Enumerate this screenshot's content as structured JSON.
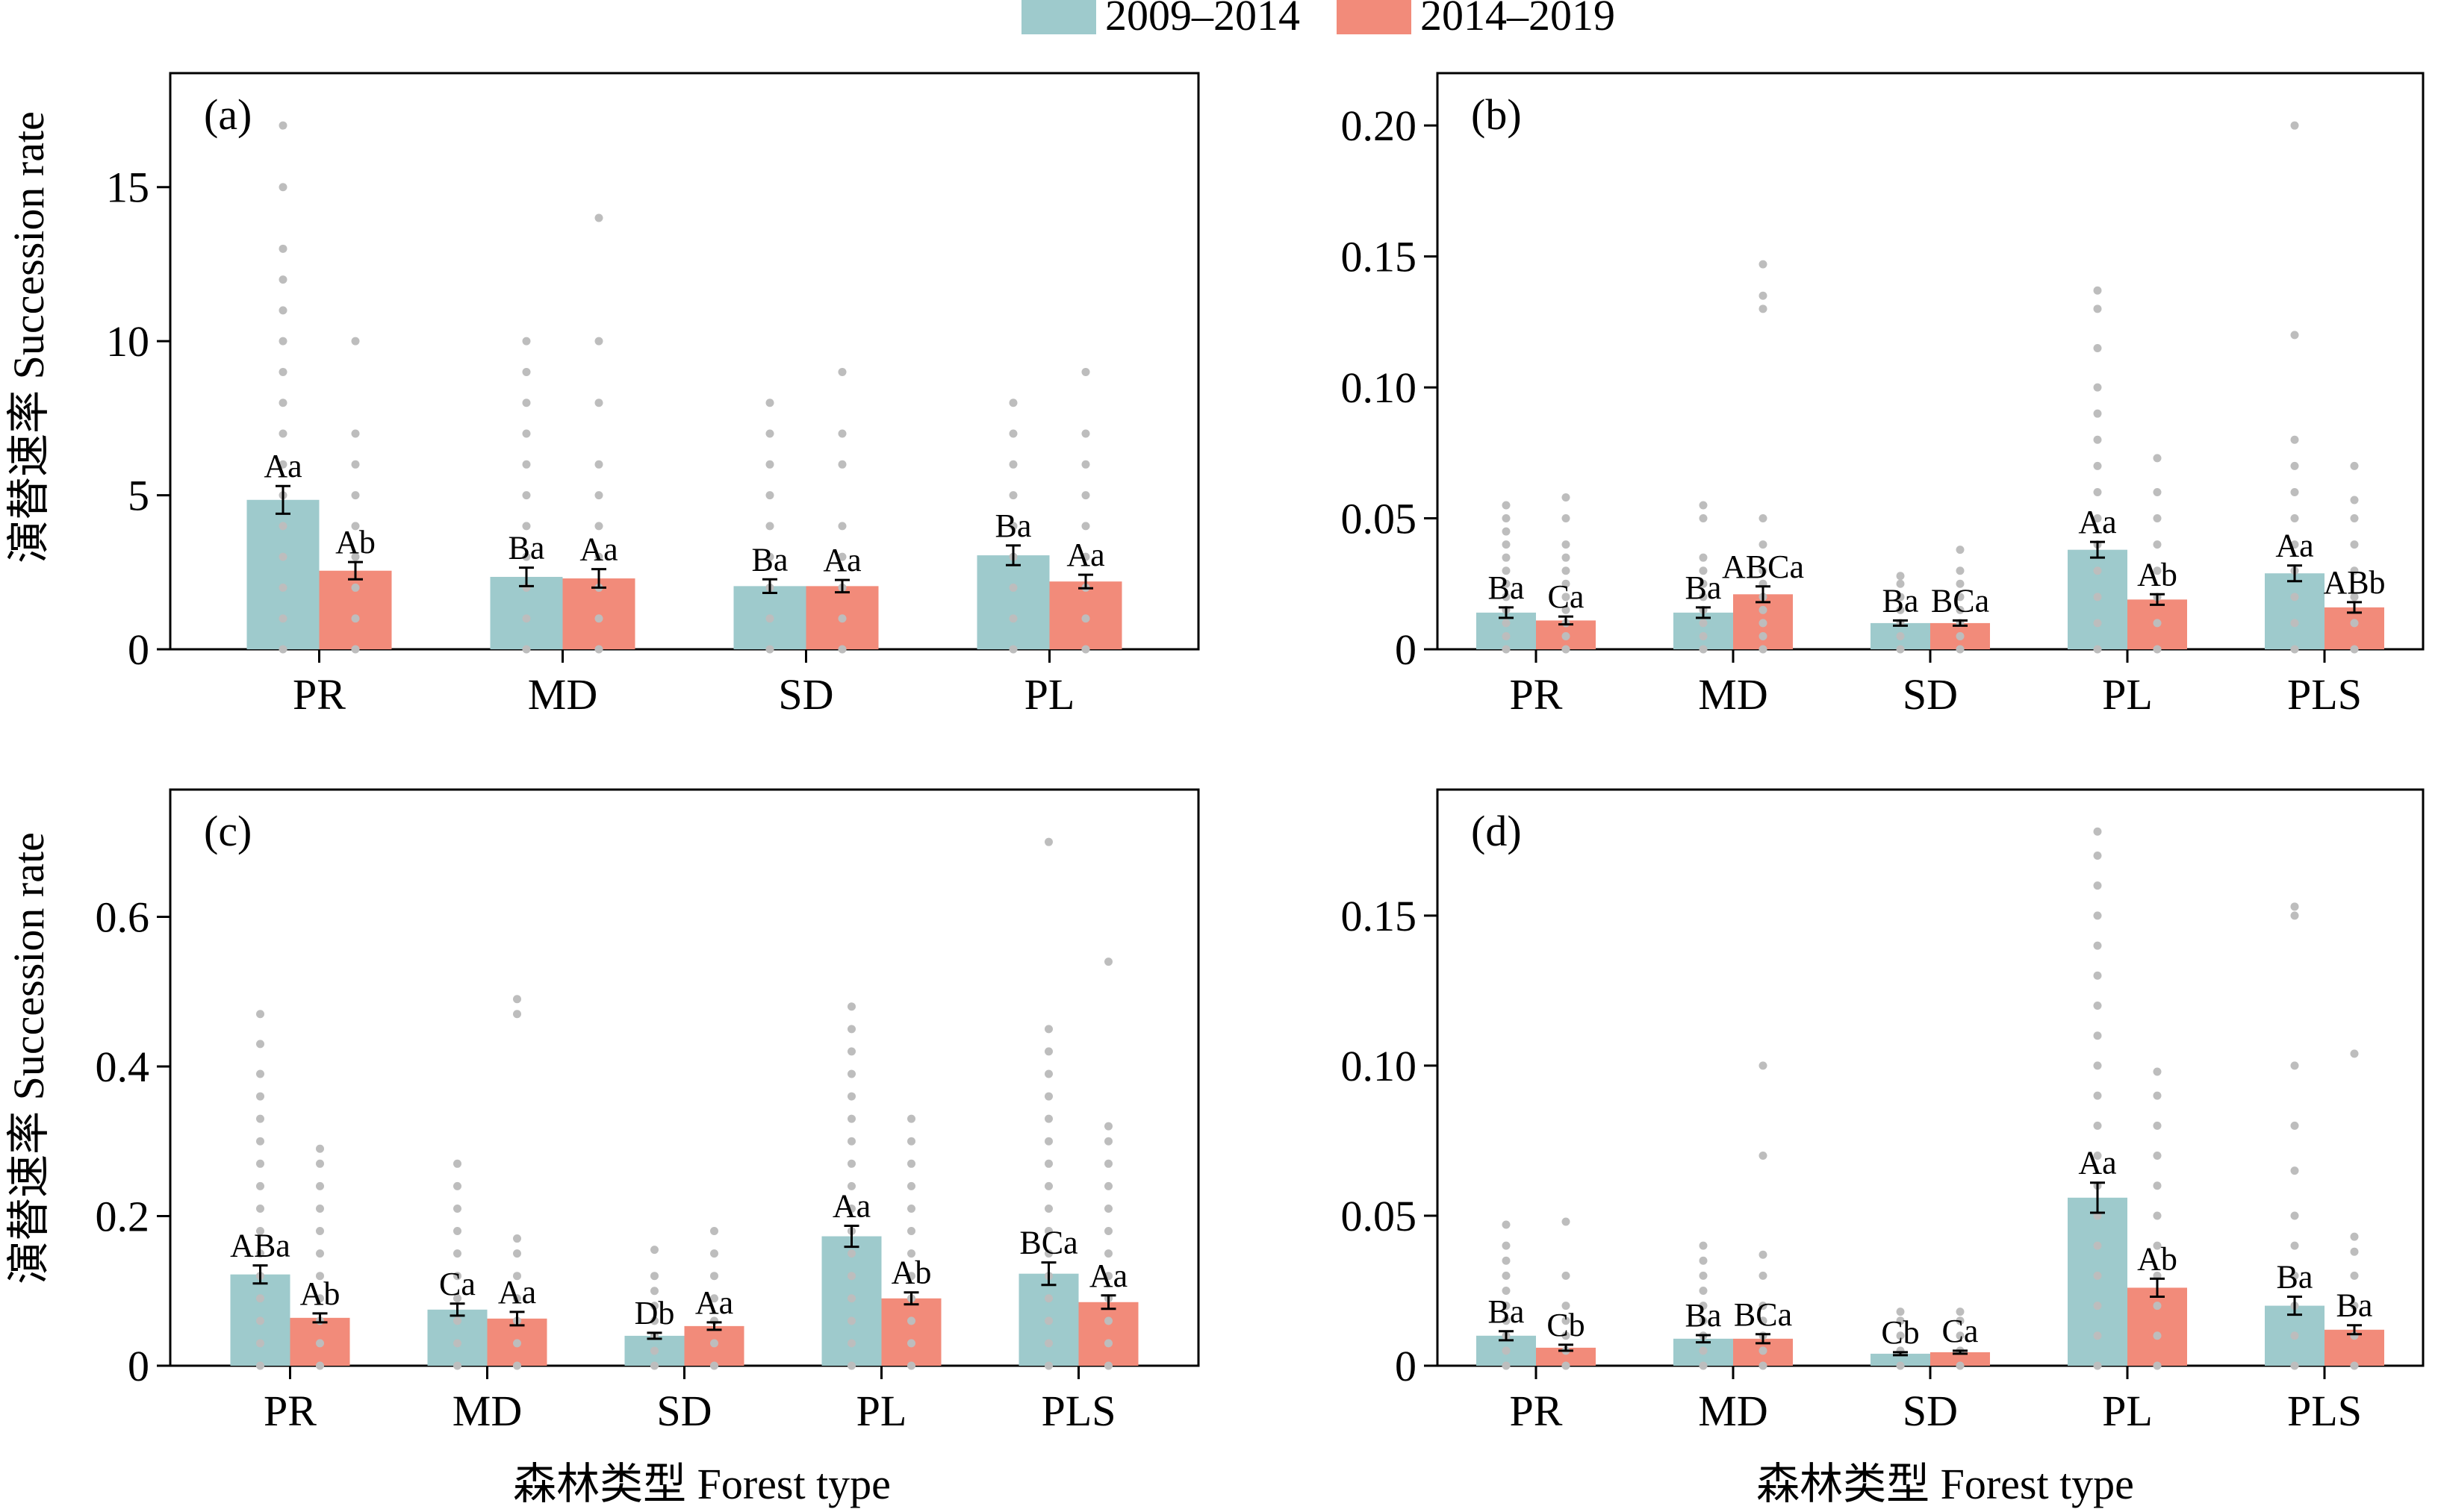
{
  "legend": {
    "position": "top-center",
    "items": [
      {
        "label": "2009–2014",
        "color": "#9ecacc"
      },
      {
        "label": "2014–2019",
        "color": "#f28b7a"
      }
    ]
  },
  "colors": {
    "series1": "#9ecacc",
    "series2": "#f28b7a",
    "points": "#bdbdbd",
    "axis": "#000000"
  },
  "axes": {
    "ylabel_top": "演替速率 Succession rate",
    "ylabel_bottom": "演替速率 Succession rate",
    "xlabel_left": "森林类型 Forest type",
    "xlabel_right": "森林类型 Forest type"
  },
  "chart_data": [
    {
      "panel": "(a)",
      "type": "bar",
      "categories": [
        "PR",
        "MD",
        "SD",
        "PL"
      ],
      "ylim": [
        0,
        18.7
      ],
      "yticks": [
        0,
        5,
        10,
        15
      ],
      "ytick_labels": [
        "0",
        "5",
        "10",
        "15"
      ],
      "series": [
        {
          "values": [
            4.85,
            2.35,
            2.05,
            3.05
          ],
          "errors": [
            0.45,
            0.3,
            0.22,
            0.32
          ],
          "labels": [
            "Aa",
            "Ba",
            "Ba",
            "Ba"
          ],
          "points": [
            [
              0,
              1,
              2,
              3,
              4,
              5,
              6,
              7,
              8,
              9,
              10,
              11,
              12,
              13,
              15,
              17
            ],
            [
              0,
              1,
              2,
              3,
              4,
              5,
              6,
              7,
              8,
              9,
              10
            ],
            [
              0,
              1,
              2,
              3,
              4,
              5,
              6,
              7,
              8
            ],
            [
              0,
              1,
              2,
              3,
              4,
              5,
              6,
              7,
              8
            ]
          ]
        },
        {
          "values": [
            2.55,
            2.3,
            2.05,
            2.2
          ],
          "errors": [
            0.28,
            0.3,
            0.2,
            0.22
          ],
          "labels": [
            "Ab",
            "Aa",
            "Aa",
            "Aa"
          ],
          "points": [
            [
              0,
              1,
              2,
              3,
              4,
              5,
              6,
              7,
              10
            ],
            [
              0,
              1,
              2,
              3,
              4,
              5,
              6,
              8,
              10,
              14
            ],
            [
              0,
              1,
              2,
              3,
              4,
              6,
              7,
              9
            ],
            [
              0,
              1,
              2,
              3,
              4,
              5,
              6,
              7,
              9
            ]
          ]
        }
      ]
    },
    {
      "panel": "(b)",
      "type": "bar",
      "categories": [
        "PR",
        "MD",
        "SD",
        "PL",
        "PLS"
      ],
      "ylim": [
        0,
        0.22
      ],
      "yticks": [
        0,
        0.05,
        0.1,
        0.15,
        0.2
      ],
      "ytick_labels": [
        "0",
        "0.05",
        "0.10",
        "0.15",
        "0.20"
      ],
      "series": [
        {
          "values": [
            0.014,
            0.014,
            0.01,
            0.038,
            0.029
          ],
          "errors": [
            0.002,
            0.002,
            0.001,
            0.003,
            0.003
          ],
          "labels": [
            "Ba",
            "Ba",
            "Ba",
            "Aa",
            "Aa"
          ],
          "points": [
            [
              0,
              0.005,
              0.01,
              0.015,
              0.02,
              0.025,
              0.03,
              0.035,
              0.04,
              0.045,
              0.05,
              0.055
            ],
            [
              0,
              0.005,
              0.01,
              0.015,
              0.02,
              0.025,
              0.03,
              0.035,
              0.05,
              0.055
            ],
            [
              0,
              0.005,
              0.01,
              0.015,
              0.02,
              0.025,
              0.028
            ],
            [
              0,
              0.01,
              0.02,
              0.03,
              0.04,
              0.05,
              0.06,
              0.07,
              0.08,
              0.09,
              0.1,
              0.115,
              0.13,
              0.137
            ],
            [
              0,
              0.01,
              0.02,
              0.03,
              0.04,
              0.05,
              0.06,
              0.07,
              0.08,
              0.12,
              0.2
            ]
          ]
        },
        {
          "values": [
            0.011,
            0.021,
            0.01,
            0.019,
            0.016
          ],
          "errors": [
            0.0015,
            0.003,
            0.001,
            0.002,
            0.002
          ],
          "labels": [
            "Ca",
            "ABCa",
            "BCa",
            "Ab",
            "ABb"
          ],
          "points": [
            [
              0,
              0.005,
              0.01,
              0.015,
              0.02,
              0.025,
              0.03,
              0.035,
              0.04,
              0.05,
              0.058
            ],
            [
              0,
              0.005,
              0.01,
              0.015,
              0.02,
              0.025,
              0.03,
              0.04,
              0.05,
              0.13,
              0.135,
              0.147
            ],
            [
              0,
              0.005,
              0.01,
              0.015,
              0.02,
              0.025,
              0.03,
              0.038
            ],
            [
              0,
              0.01,
              0.02,
              0.03,
              0.04,
              0.05,
              0.06,
              0.073
            ],
            [
              0,
              0.01,
              0.02,
              0.03,
              0.04,
              0.05,
              0.057,
              0.07
            ]
          ]
        }
      ]
    },
    {
      "panel": "(c)",
      "type": "bar",
      "categories": [
        "PR",
        "MD",
        "SD",
        "PL",
        "PLS"
      ],
      "ylim": [
        0,
        0.77
      ],
      "yticks": [
        0,
        0.2,
        0.4,
        0.6
      ],
      "ytick_labels": [
        "0",
        "0.2",
        "0.4",
        "0.6"
      ],
      "series": [
        {
          "values": [
            0.122,
            0.075,
            0.04,
            0.173,
            0.123
          ],
          "errors": [
            0.012,
            0.008,
            0.004,
            0.014,
            0.015
          ],
          "labels": [
            "ABa",
            "Ca",
            "Db",
            "Aa",
            "BCa"
          ],
          "points": [
            [
              0,
              0.03,
              0.06,
              0.09,
              0.12,
              0.15,
              0.18,
              0.21,
              0.24,
              0.27,
              0.3,
              0.33,
              0.36,
              0.39,
              0.43,
              0.47
            ],
            [
              0,
              0.03,
              0.06,
              0.09,
              0.12,
              0.15,
              0.18,
              0.21,
              0.24,
              0.27
            ],
            [
              0,
              0.02,
              0.04,
              0.06,
              0.08,
              0.1,
              0.12,
              0.155
            ],
            [
              0,
              0.03,
              0.06,
              0.09,
              0.12,
              0.15,
              0.18,
              0.21,
              0.24,
              0.27,
              0.3,
              0.33,
              0.36,
              0.39,
              0.42,
              0.45,
              0.48
            ],
            [
              0,
              0.03,
              0.06,
              0.09,
              0.12,
              0.15,
              0.18,
              0.21,
              0.24,
              0.27,
              0.3,
              0.33,
              0.36,
              0.39,
              0.42,
              0.45,
              0.7
            ]
          ]
        },
        {
          "values": [
            0.064,
            0.063,
            0.053,
            0.09,
            0.085
          ],
          "errors": [
            0.006,
            0.009,
            0.005,
            0.008,
            0.009
          ],
          "labels": [
            "Ab",
            "Aa",
            "Aa",
            "Ab",
            "Aa"
          ],
          "points": [
            [
              0,
              0.03,
              0.06,
              0.09,
              0.12,
              0.15,
              0.18,
              0.21,
              0.24,
              0.27,
              0.29
            ],
            [
              0,
              0.03,
              0.06,
              0.09,
              0.12,
              0.15,
              0.17,
              0.47,
              0.49
            ],
            [
              0,
              0.03,
              0.06,
              0.09,
              0.12,
              0.15,
              0.18
            ],
            [
              0,
              0.03,
              0.06,
              0.09,
              0.12,
              0.15,
              0.18,
              0.21,
              0.24,
              0.27,
              0.3,
              0.33
            ],
            [
              0,
              0.03,
              0.06,
              0.09,
              0.12,
              0.15,
              0.18,
              0.21,
              0.24,
              0.27,
              0.3,
              0.32,
              0.54
            ]
          ]
        }
      ]
    },
    {
      "panel": "(d)",
      "type": "bar",
      "categories": [
        "PR",
        "MD",
        "SD",
        "PL",
        "PLS"
      ],
      "ylim": [
        0,
        0.192
      ],
      "yticks": [
        0,
        0.05,
        0.1,
        0.15
      ],
      "ytick_labels": [
        "0",
        "0.05",
        "0.10",
        "0.15"
      ],
      "series": [
        {
          "values": [
            0.01,
            0.009,
            0.004,
            0.056,
            0.02
          ],
          "errors": [
            0.0015,
            0.0012,
            0.0005,
            0.005,
            0.003
          ],
          "labels": [
            "Ba",
            "Ba",
            "Cb",
            "Aa",
            "Ba"
          ],
          "points": [
            [
              0,
              0.005,
              0.01,
              0.015,
              0.02,
              0.025,
              0.03,
              0.035,
              0.04,
              0.047
            ],
            [
              0,
              0.005,
              0.01,
              0.015,
              0.02,
              0.025,
              0.03,
              0.035,
              0.04
            ],
            [
              0,
              0.005,
              0.01,
              0.015,
              0.018
            ],
            [
              0,
              0.01,
              0.02,
              0.03,
              0.04,
              0.05,
              0.06,
              0.07,
              0.08,
              0.09,
              0.1,
              0.11,
              0.12,
              0.13,
              0.14,
              0.15,
              0.16,
              0.17,
              0.178
            ],
            [
              0,
              0.01,
              0.02,
              0.03,
              0.04,
              0.05,
              0.065,
              0.08,
              0.1,
              0.15,
              0.153
            ]
          ]
        },
        {
          "values": [
            0.006,
            0.009,
            0.0045,
            0.026,
            0.012
          ],
          "errors": [
            0.001,
            0.0015,
            0.0005,
            0.003,
            0.0015
          ],
          "labels": [
            "Cb",
            "BCa",
            "Ca",
            "Ab",
            "Ba"
          ],
          "points": [
            [
              0,
              0.005,
              0.01,
              0.015,
              0.02,
              0.03,
              0.048
            ],
            [
              0,
              0.005,
              0.01,
              0.015,
              0.02,
              0.03,
              0.037,
              0.07,
              0.1
            ],
            [
              0,
              0.005,
              0.01,
              0.015,
              0.018
            ],
            [
              0,
              0.01,
              0.02,
              0.03,
              0.04,
              0.05,
              0.06,
              0.07,
              0.08,
              0.09,
              0.098
            ],
            [
              0,
              0.01,
              0.02,
              0.03,
              0.038,
              0.043,
              0.104
            ]
          ]
        }
      ]
    }
  ]
}
